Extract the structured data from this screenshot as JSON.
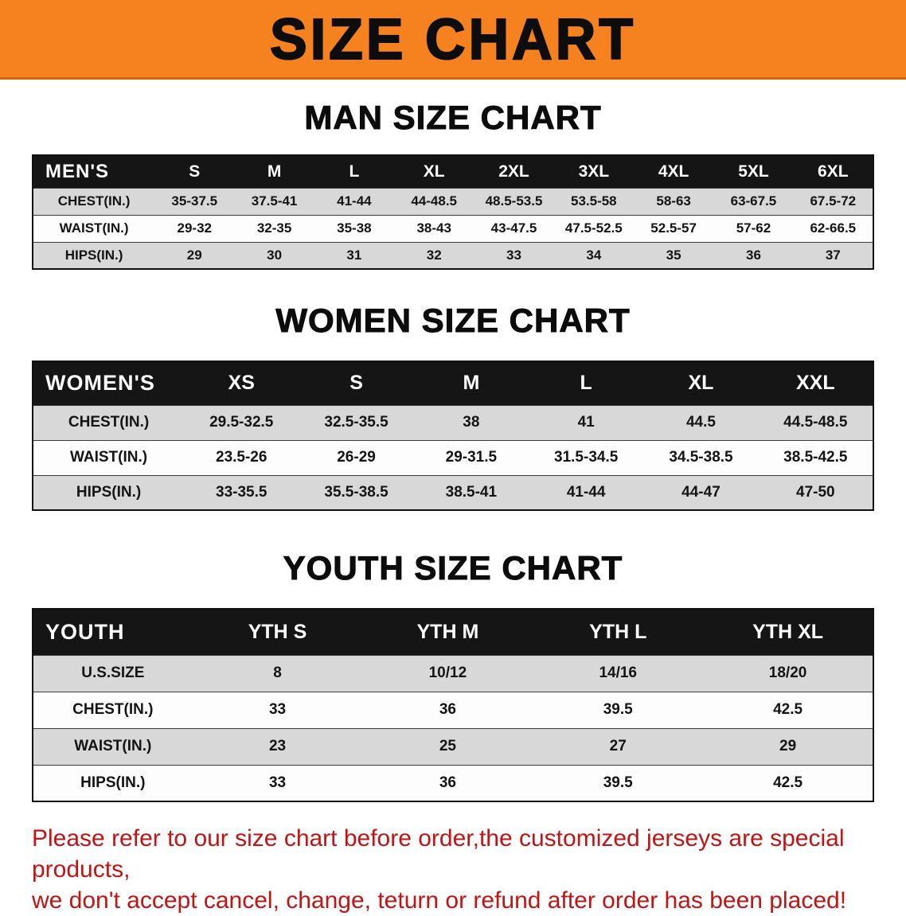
{
  "banner": {
    "title": "SIZE CHART"
  },
  "sections": [
    {
      "heading": "MAN SIZE CHART",
      "table": {
        "header": [
          "MEN'S",
          "S",
          "M",
          "L",
          "XL",
          "2XL",
          "3XL",
          "4XL",
          "5XL",
          "6XL"
        ],
        "rows": [
          {
            "label": "CHEST(IN.)",
            "values": [
              "35-37.5",
              "37.5-41",
              "41-44",
              "44-48.5",
              "48.5-53.5",
              "53.5-58",
              "58-63",
              "63-67.5",
              "67.5-72"
            ]
          },
          {
            "label": "WAIST(IN.)",
            "values": [
              "29-32",
              "32-35",
              "35-38",
              "38-43",
              "43-47.5",
              "47.5-52.5",
              "52.5-57",
              "57-62",
              "62-66.5"
            ]
          },
          {
            "label": "HIPS(IN.)",
            "values": [
              "29",
              "30",
              "31",
              "32",
              "33",
              "34",
              "35",
              "36",
              "37"
            ]
          }
        ]
      }
    },
    {
      "heading": "WOMEN SIZE CHART",
      "table": {
        "header": [
          "WOMEN'S",
          "XS",
          "S",
          "M",
          "L",
          "XL",
          "XXL"
        ],
        "rows": [
          {
            "label": "CHEST(IN.)",
            "values": [
              "29.5-32.5",
              "32.5-35.5",
              "38",
              "41",
              "44.5",
              "44.5-48.5"
            ]
          },
          {
            "label": "WAIST(IN.)",
            "values": [
              "23.5-26",
              "26-29",
              "29-31.5",
              "31.5-34.5",
              "34.5-38.5",
              "38.5-42.5"
            ]
          },
          {
            "label": "HIPS(IN.)",
            "values": [
              "33-35.5",
              "35.5-38.5",
              "38.5-41",
              "41-44",
              "44-47",
              "47-50"
            ]
          }
        ]
      }
    },
    {
      "heading": "YOUTH SIZE CHART",
      "table": {
        "header": [
          "YOUTH",
          "YTH S",
          "YTH M",
          "YTH L",
          "YTH XL"
        ],
        "rows": [
          {
            "label": "U.S.SIZE",
            "values": [
              "8",
              "10/12",
              "14/16",
              "18/20"
            ]
          },
          {
            "label": "CHEST(IN.)",
            "values": [
              "33",
              "36",
              "39.5",
              "42.5"
            ]
          },
          {
            "label": "WAIST(IN.)",
            "values": [
              "23",
              "25",
              "27",
              "29"
            ]
          },
          {
            "label": "HIPS(IN.)",
            "values": [
              "33",
              "36",
              "39.5",
              "42.5"
            ]
          }
        ]
      }
    }
  ],
  "footer": {
    "line1": "Please refer to our size chart before order,the customized jerseys are special products,",
    "line2": "we don't accept cancel, change, teturn or refund after order has been placed!"
  },
  "colors": {
    "banner_bg": "#F5821E",
    "header_bg": "#151515",
    "row_shade": "#D8D8D8",
    "notice_red": "#C41313"
  }
}
